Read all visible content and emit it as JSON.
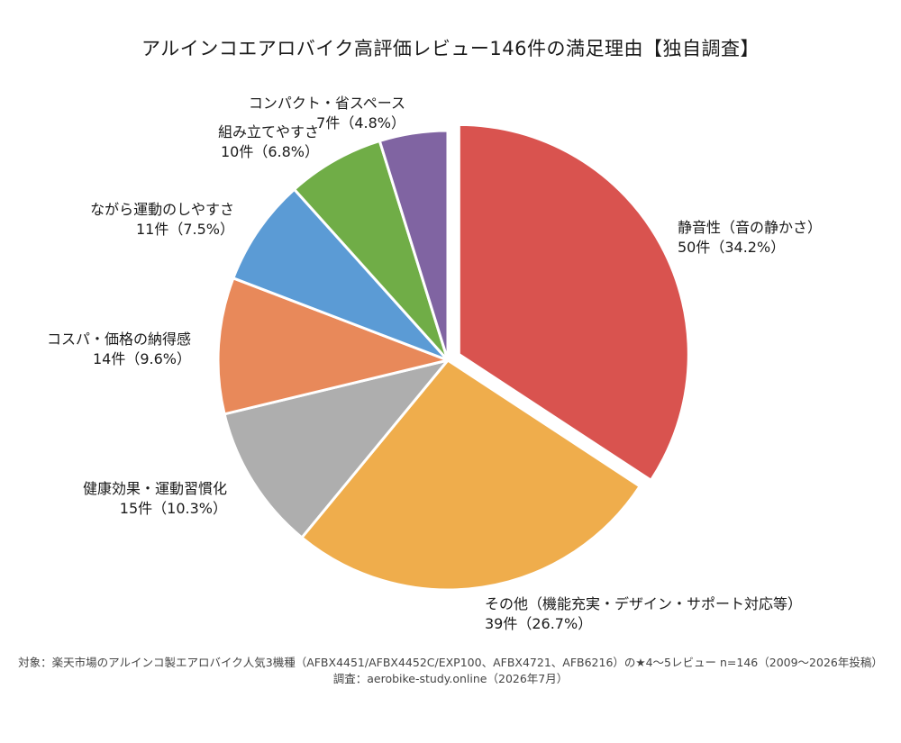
{
  "chart_data": {
    "type": "pie",
    "title": "アルインコエアロバイク高評価レビュー146件の満足理由【独自調査】",
    "total": 146,
    "slices": [
      {
        "label": "静音性（音の静かさ）",
        "count_text": "50件（34.2%）",
        "value": 50,
        "percent": 34.2,
        "color": "#d9534f",
        "exploded": true
      },
      {
        "label": "その他（機能充実・デザイン・サポート対応等）",
        "count_text": "39件（26.7%）",
        "value": 39,
        "percent": 26.7,
        "color": "#efad4c",
        "exploded": false
      },
      {
        "label": "健康効果・運動習慣化",
        "count_text": "15件（10.3%）",
        "value": 15,
        "percent": 10.3,
        "color": "#aeaeae",
        "exploded": false
      },
      {
        "label": "コスパ・価格の納得感",
        "count_text": "14件（9.6%）",
        "value": 14,
        "percent": 9.6,
        "color": "#e8895a",
        "exploded": false
      },
      {
        "label": "ながら運動のしやすさ",
        "count_text": "11件（7.5%）",
        "value": 11,
        "percent": 7.5,
        "color": "#5b9bd5",
        "exploded": false
      },
      {
        "label": "組み立てやすさ",
        "count_text": "10件（6.8%）",
        "value": 10,
        "percent": 6.8,
        "color": "#70ad47",
        "exploded": false
      },
      {
        "label": "コンパクト・省スペース",
        "count_text": "7件（4.8%）",
        "value": 7,
        "percent": 4.8,
        "color": "#8064a2",
        "exploded": false
      }
    ],
    "start_angle": "12 o'clock",
    "direction": "clockwise",
    "legend": "none"
  },
  "footnote": {
    "line1": "対象：楽天市場のアルインコ製エアロバイク人気3機種（AFBX4451/AFBX4452C/EXP100、AFBX4721、AFB6216）の★4〜5レビュー n=146（2009〜2026年投稿）",
    "line2": "調査：aerobike-study.online（2026年7月）"
  }
}
